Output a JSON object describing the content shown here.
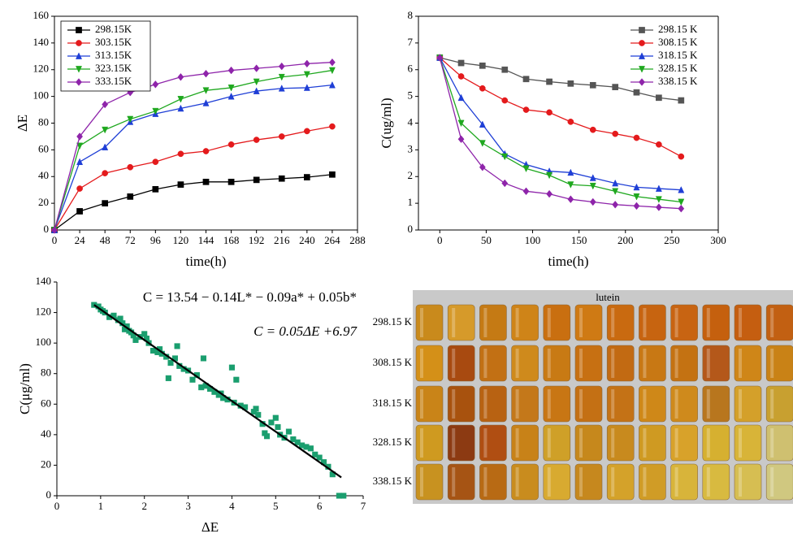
{
  "chart_data": [
    {
      "type": "line",
      "xlabel": "time(h)",
      "ylabel": "ΔE",
      "x": [
        0,
        24,
        48,
        72,
        96,
        120,
        144,
        168,
        192,
        216,
        240,
        264
      ],
      "xlim": [
        0,
        288
      ],
      "xticks": [
        0,
        24,
        48,
        72,
        96,
        120,
        144,
        168,
        192,
        216,
        240,
        264,
        288
      ],
      "ylim": [
        0,
        160
      ],
      "yticks": [
        0,
        20,
        40,
        60,
        80,
        100,
        120,
        140,
        160
      ],
      "legend": "upper left",
      "legend_frame": true,
      "series": [
        {
          "name": "298.15K",
          "color": "#000000",
          "marker": "square",
          "values": [
            0,
            14,
            20,
            25,
            30.5,
            34,
            36,
            36,
            37.5,
            38.5,
            39.5,
            41.5
          ]
        },
        {
          "name": "303.15K",
          "color": "#e41a1c",
          "marker": "circle",
          "values": [
            0,
            31,
            42.5,
            47,
            51,
            57,
            59,
            64,
            67.5,
            70,
            74,
            77.5
          ]
        },
        {
          "name": "313.15K",
          "color": "#1f3fd6",
          "marker": "triangle",
          "values": [
            0,
            51,
            62,
            81,
            87,
            91,
            95,
            100,
            104,
            106,
            106.5,
            108.5
          ]
        },
        {
          "name": "323.15K",
          "color": "#1fa81f",
          "marker": "triangle-down",
          "values": [
            0,
            63,
            75,
            83,
            89,
            98,
            104.5,
            106.5,
            111,
            114.5,
            116.5,
            119.5
          ]
        },
        {
          "name": "333.15K",
          "color": "#8e24aa",
          "marker": "diamond",
          "values": [
            0,
            70,
            94,
            103,
            109,
            114.5,
            117,
            119.5,
            121,
            122.5,
            124.5,
            125.5
          ]
        }
      ]
    },
    {
      "type": "line",
      "xlabel": "time(h)",
      "ylabel": "C(ug/ml)",
      "x": [
        0,
        23,
        46,
        70,
        93,
        118,
        141,
        165,
        189,
        212,
        236,
        260
      ],
      "xlim": [
        -23,
        300
      ],
      "xticks": [
        0,
        50,
        100,
        150,
        200,
        250,
        300
      ],
      "ylim": [
        0,
        8
      ],
      "yticks": [
        0,
        1,
        2,
        3,
        4,
        5,
        6,
        7,
        8
      ],
      "legend": "upper right",
      "legend_frame": false,
      "series": [
        {
          "name": "298.15 K",
          "color": "#555555",
          "marker": "square",
          "values": [
            6.45,
            6.25,
            6.15,
            6.0,
            5.65,
            5.55,
            5.48,
            5.42,
            5.35,
            5.15,
            4.95,
            4.85
          ]
        },
        {
          "name": "308.15 K",
          "color": "#e41a1c",
          "marker": "circle",
          "values": [
            6.45,
            5.75,
            5.3,
            4.85,
            4.5,
            4.4,
            4.05,
            3.75,
            3.6,
            3.45,
            3.2,
            2.75
          ]
        },
        {
          "name": "318.15 K",
          "color": "#1f3fd6",
          "marker": "triangle",
          "values": [
            6.45,
            4.95,
            3.95,
            2.85,
            2.45,
            2.2,
            2.15,
            1.95,
            1.75,
            1.6,
            1.55,
            1.5
          ]
        },
        {
          "name": "328.15 K",
          "color": "#1fa81f",
          "marker": "triangle-down",
          "values": [
            6.45,
            4.0,
            3.25,
            2.75,
            2.3,
            2.05,
            1.7,
            1.65,
            1.45,
            1.25,
            1.15,
            1.05
          ]
        },
        {
          "name": "338.15 K",
          "color": "#8e24aa",
          "marker": "diamond",
          "values": [
            6.45,
            3.4,
            2.35,
            1.75,
            1.45,
            1.35,
            1.15,
            1.05,
            0.95,
            0.9,
            0.85,
            0.8
          ]
        }
      ]
    },
    {
      "type": "scatter",
      "xlabel": "ΔE",
      "ylabel": "C(μg/ml)",
      "xlim": [
        0,
        7
      ],
      "xticks": [
        0,
        1,
        2,
        3,
        4,
        5,
        6,
        7
      ],
      "ylim": [
        0,
        140
      ],
      "yticks": [
        0,
        20,
        40,
        60,
        80,
        100,
        120,
        140
      ],
      "annotations": [
        "C = 13.54 − 0.14L* −  0.09a* + 0.05b*",
        "C = 0.05ΔE +6.97"
      ],
      "series": [
        {
          "color": "#1a9e6e",
          "marker": "square",
          "x": [
            0.85,
            0.95,
            1.0,
            1.05,
            1.1,
            1.2,
            1.3,
            1.4,
            1.45,
            1.5,
            1.55,
            1.6,
            1.65,
            1.7,
            1.75,
            1.8,
            1.9,
            2.0,
            2.05,
            2.1,
            2.2,
            2.3,
            2.35,
            2.4,
            2.5,
            2.55,
            2.6,
            2.7,
            2.75,
            2.8,
            2.9,
            3.0,
            3.1,
            3.2,
            3.3,
            3.35,
            3.4,
            3.5,
            3.6,
            3.7,
            3.75,
            3.8,
            3.9,
            4.0,
            4.05,
            4.1,
            4.2,
            4.3,
            4.5,
            4.55,
            4.6,
            4.7,
            4.75,
            4.8,
            4.9,
            5.0,
            5.05,
            5.1,
            5.2,
            5.3,
            5.4,
            5.5,
            5.6,
            5.7,
            5.8,
            5.9,
            6.0,
            6.1,
            6.2,
            6.3,
            6.45,
            6.55
          ],
          "values": [
            125,
            124,
            122,
            121,
            120,
            117,
            118,
            115,
            116,
            113,
            109,
            111,
            108,
            107,
            105,
            102,
            104,
            106,
            103,
            100,
            95,
            94,
            96,
            93,
            91,
            77,
            87,
            90,
            98,
            85,
            83,
            82,
            76,
            79,
            71,
            90,
            72,
            70,
            68,
            66,
            67,
            64,
            63,
            84,
            61,
            76,
            59,
            58,
            55,
            57,
            53,
            47,
            41,
            39,
            48,
            51,
            45,
            40,
            38,
            42,
            37,
            35,
            33,
            32,
            31,
            27,
            25,
            22,
            19,
            14,
            0,
            0
          ]
        },
        {
          "color": "#000000",
          "style": "line",
          "x": [
            0.85,
            6.5
          ],
          "values": [
            125,
            12
          ]
        }
      ]
    }
  ],
  "photo": {
    "title": "lutein",
    "rows": [
      "298.15 K",
      "308.15 K",
      "318.15 K",
      "328.15 K",
      "338.15 K"
    ]
  }
}
